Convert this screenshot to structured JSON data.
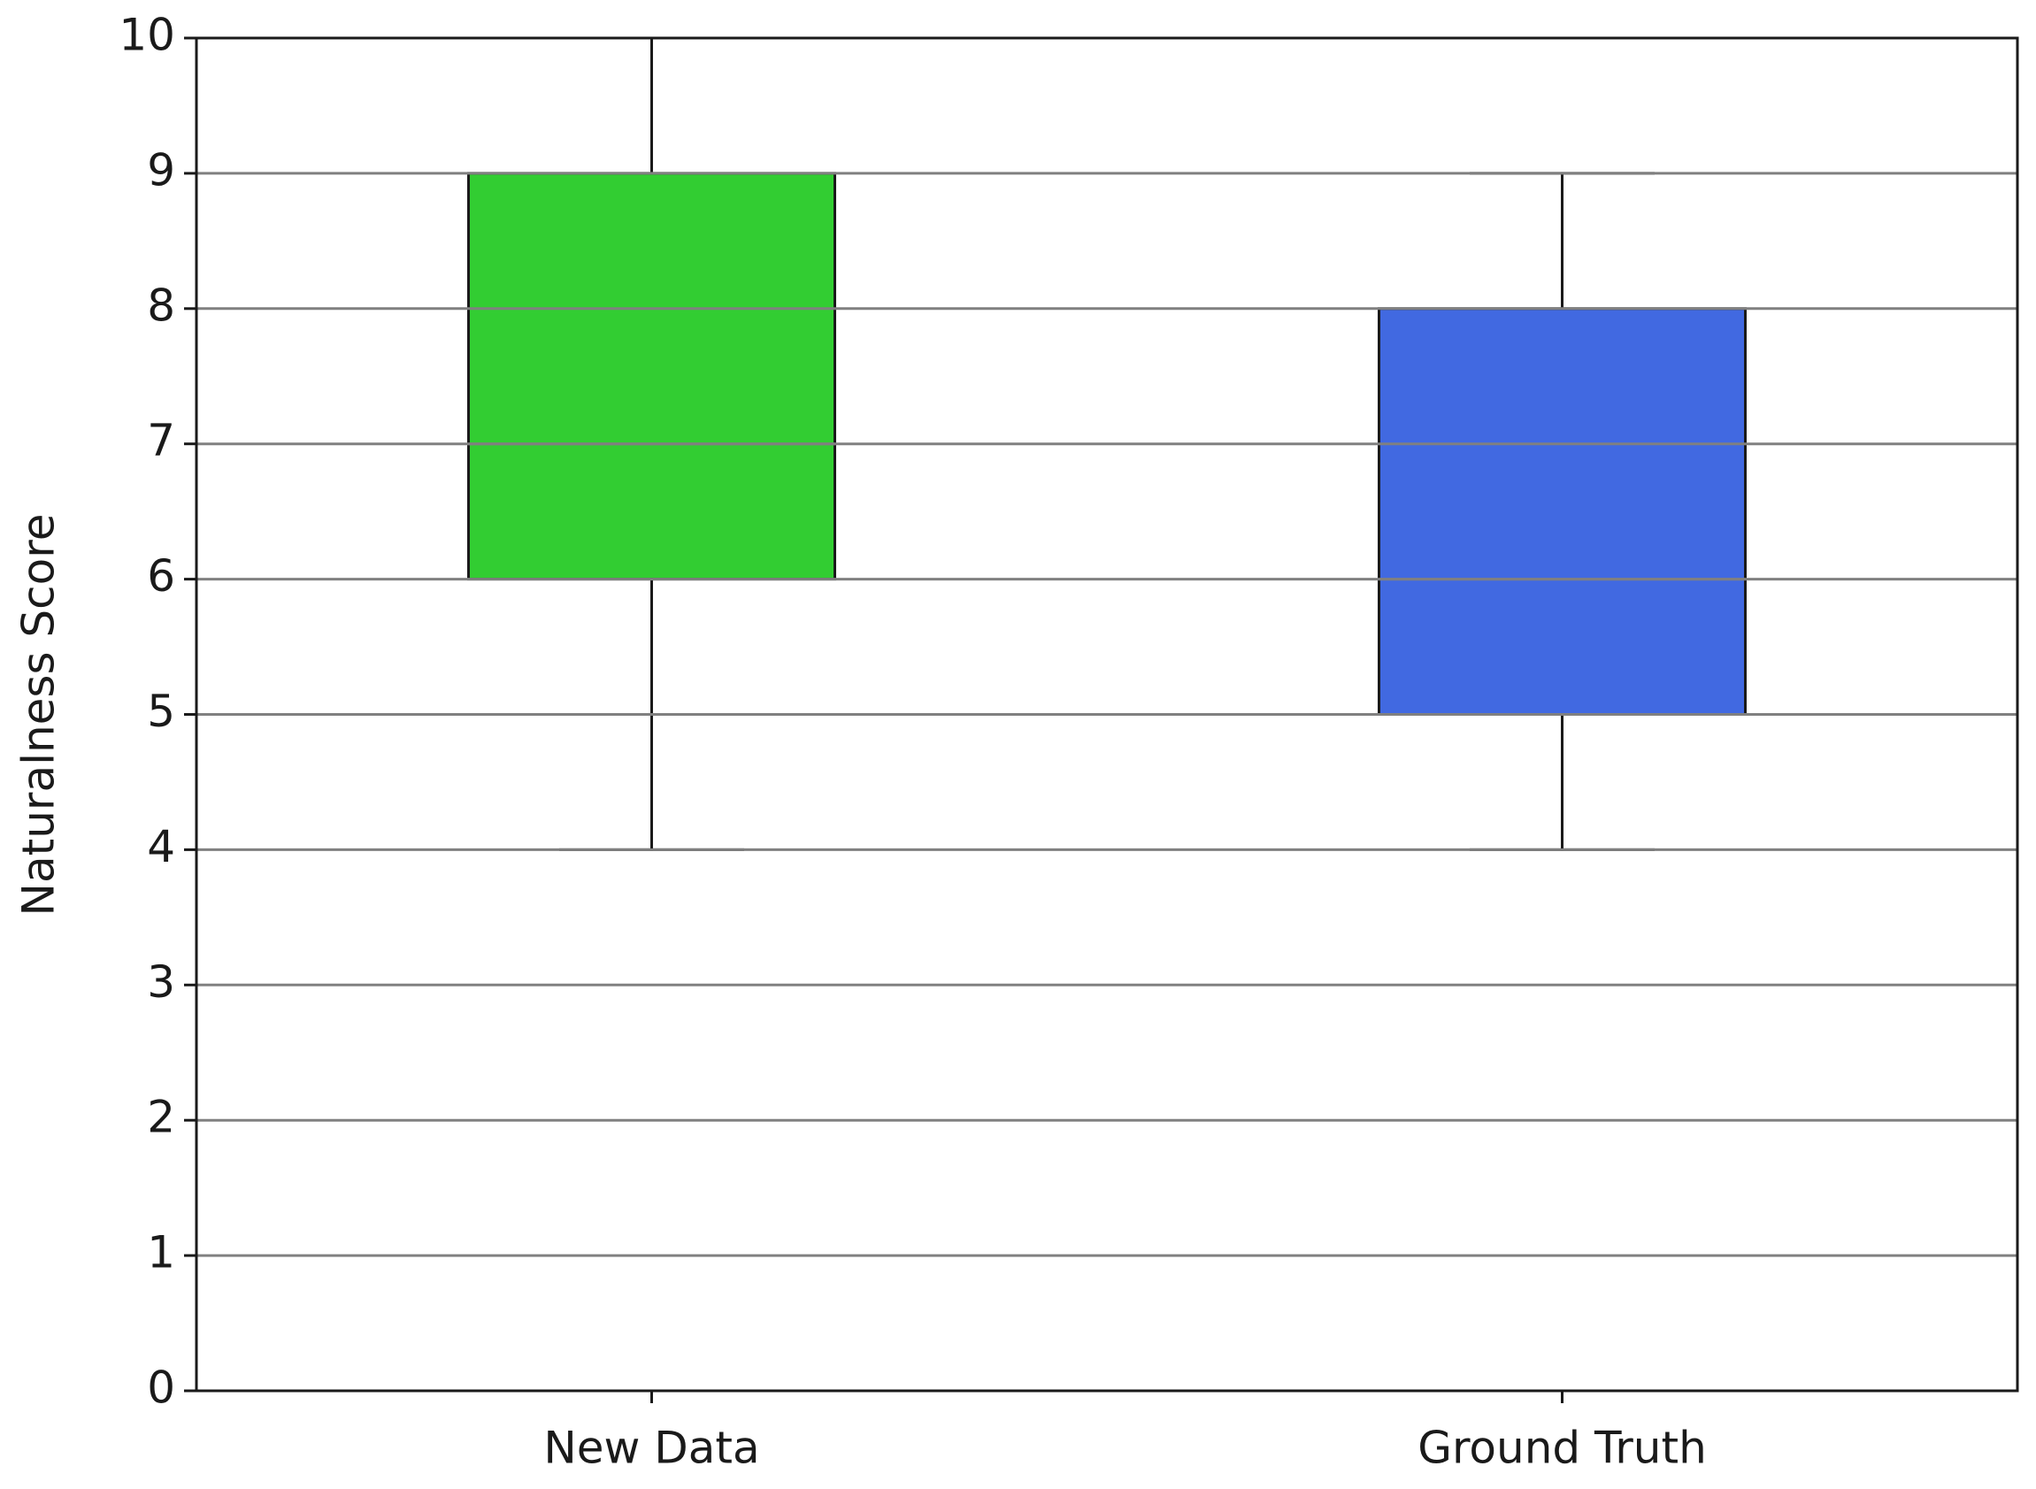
{
  "chart_data": {
    "type": "box",
    "ylabel": "Naturalness Score",
    "categories": [
      "New Data",
      "Ground Truth"
    ],
    "whislo": [
      4,
      4
    ],
    "q1": [
      6,
      5
    ],
    "median": [
      7,
      6
    ],
    "q3": [
      9,
      8
    ],
    "whishi": [
      10,
      9
    ],
    "colors": [
      "#32cd32",
      "#4169e1"
    ],
    "median_color": "#808080",
    "ylim": [
      0,
      10
    ],
    "yticks": [
      0,
      1,
      2,
      3,
      4,
      5,
      6,
      7,
      8,
      9,
      10
    ],
    "grid": true
  }
}
